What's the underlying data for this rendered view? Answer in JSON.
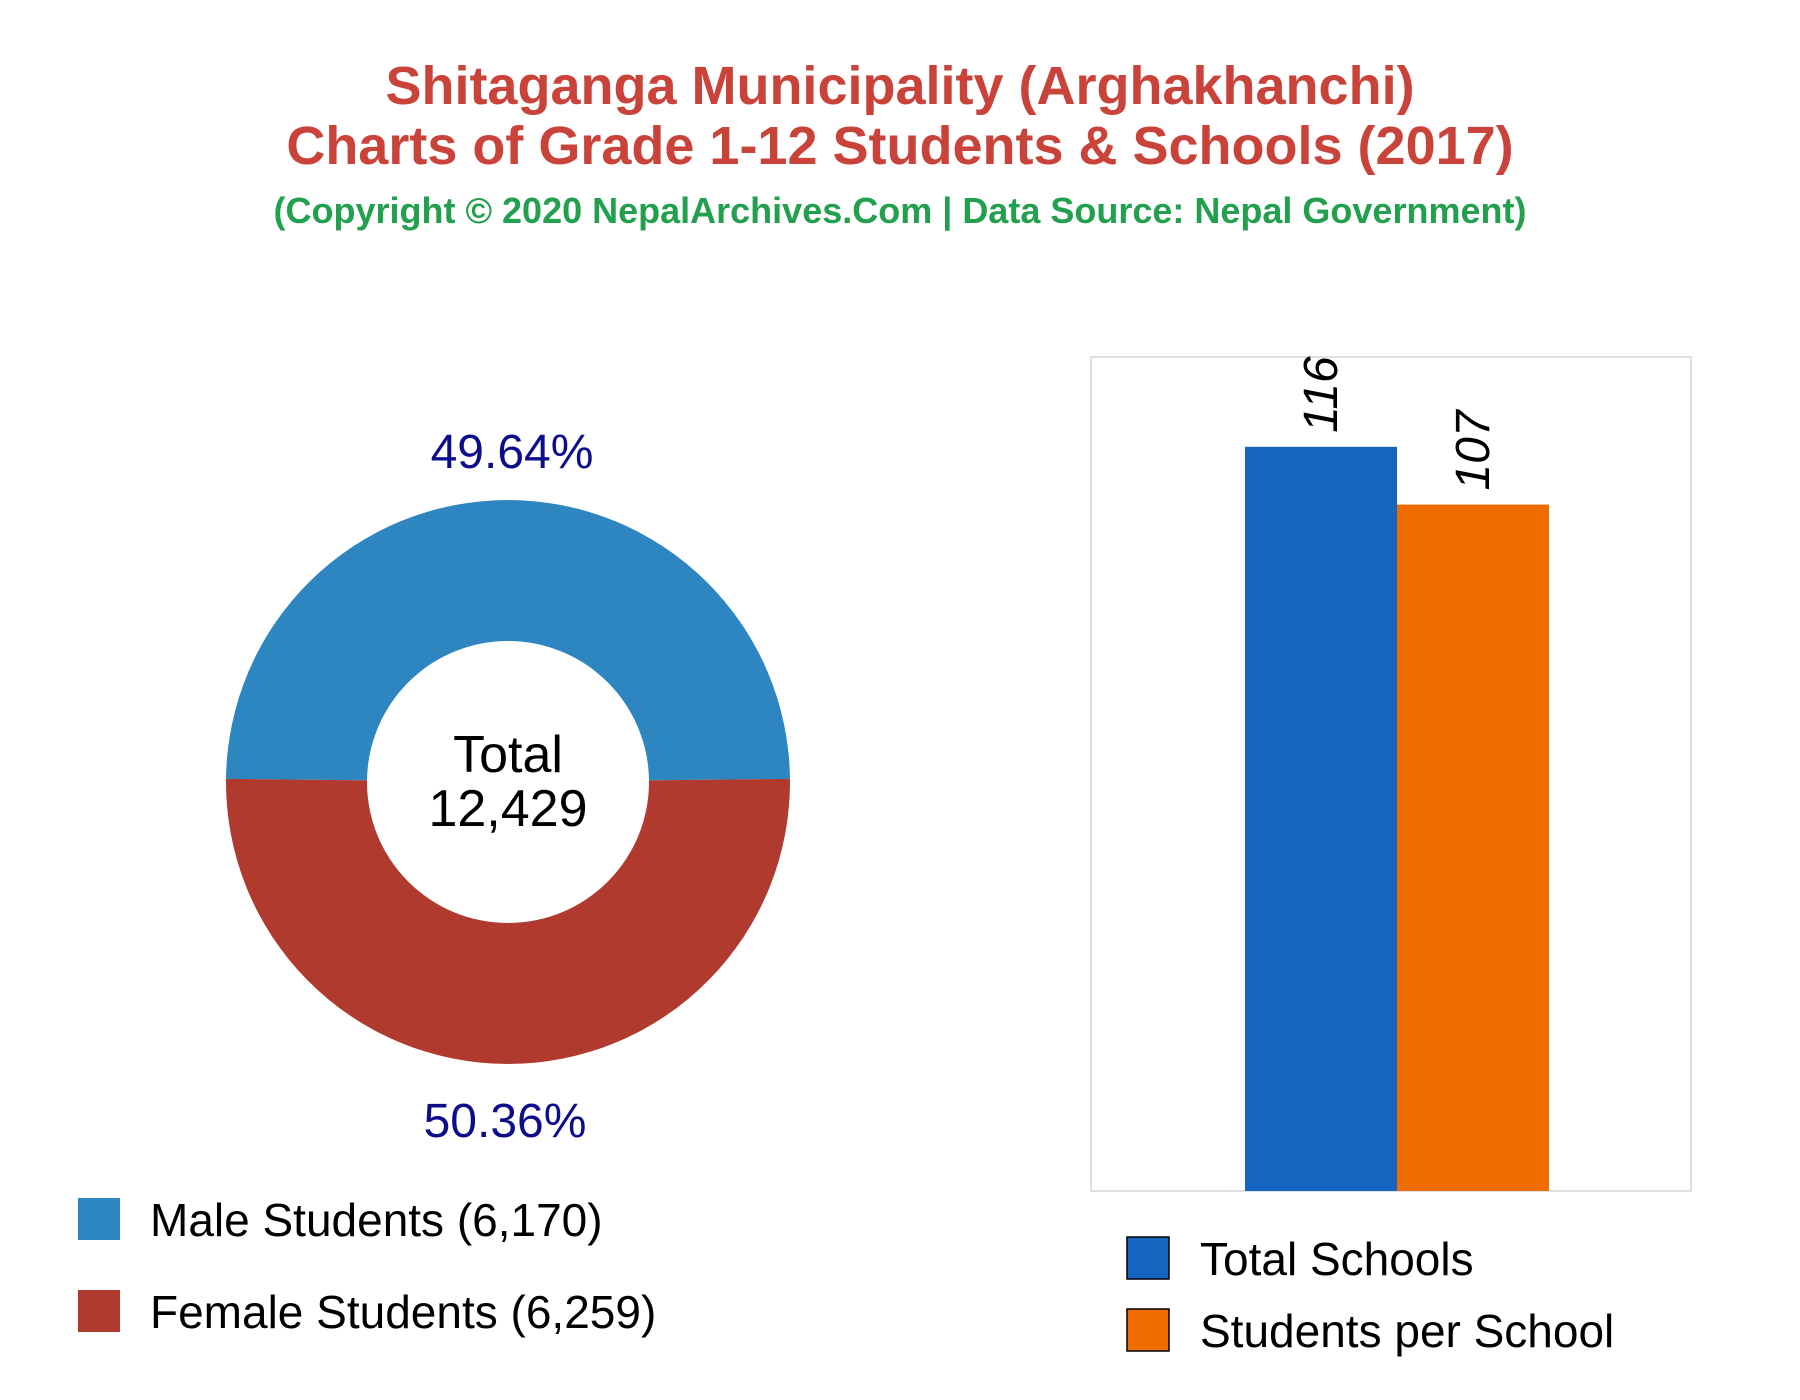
{
  "header": {
    "title_line1": "Shitaganga Municipality (Arghakhanchi)",
    "title_line2": "Charts of Grade 1-12 Students & Schools (2017)",
    "subtitle": "(Copyright © 2020 NepalArchives.Com | Data Source: Nepal Government)"
  },
  "colors": {
    "male": "#2e86c1",
    "female": "#b03a2e",
    "total_schools": "#1565c0",
    "students_per_school": "#ef6c00"
  },
  "chart_data": [
    {
      "type": "pie",
      "variant": "donut",
      "center_label": "Total",
      "center_value": "12,429",
      "slices": [
        {
          "label": "Male Students (6,170)",
          "value": 6170,
          "percent_label": "49.64%",
          "color": "#2e86c1"
        },
        {
          "label": "Female Students (6,259)",
          "value": 6259,
          "percent_label": "50.36%",
          "color": "#b03a2e"
        }
      ],
      "legend_position": "bottom-left"
    },
    {
      "type": "bar",
      "categories": [
        "Total Schools",
        "Students per School"
      ],
      "values": [
        116,
        107
      ],
      "value_labels": [
        "116",
        "107"
      ],
      "colors": [
        "#1565c0",
        "#ef6c00"
      ],
      "ylim": [
        0,
        130
      ],
      "grid": false,
      "legend_position": "bottom"
    }
  ]
}
